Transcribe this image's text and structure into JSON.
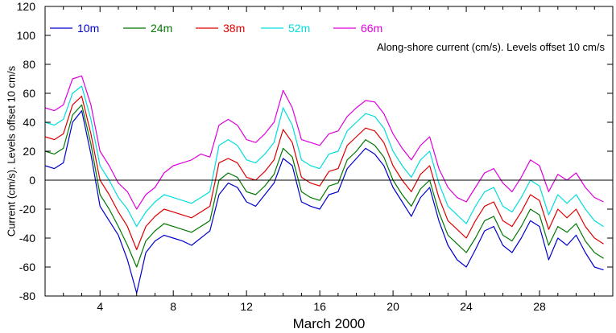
{
  "chart_data": {
    "type": "line",
    "title": "",
    "annotation": "Along-shore current (cm/s). Levels offset 10 cm/s",
    "xlabel": "March 2000",
    "ylabel": "Current (cm/s). Levels offset 10 cm/s",
    "xlim": [
      1,
      32
    ],
    "ylim": [
      -80,
      120
    ],
    "xticks": [
      4,
      8,
      12,
      16,
      20,
      24,
      28
    ],
    "yticks": [
      -80,
      -60,
      -40,
      -20,
      0,
      20,
      40,
      60,
      80,
      100,
      120
    ],
    "zero_line": true,
    "grid": false,
    "legend_position": "top-left",
    "x": [
      1.0,
      1.5,
      2.0,
      2.5,
      3.0,
      3.5,
      4.0,
      4.5,
      5.0,
      5.5,
      6.0,
      6.5,
      7.0,
      7.5,
      8.0,
      8.5,
      9.0,
      9.5,
      10.0,
      10.5,
      11.0,
      11.5,
      12.0,
      12.5,
      13.0,
      13.5,
      14.0,
      14.5,
      15.0,
      15.5,
      16.0,
      16.5,
      17.0,
      17.5,
      18.0,
      18.5,
      19.0,
      19.5,
      20.0,
      20.5,
      21.0,
      21.5,
      22.0,
      22.5,
      23.0,
      23.5,
      24.0,
      24.5,
      25.0,
      25.5,
      26.0,
      26.5,
      27.0,
      27.5,
      28.0,
      28.5,
      29.0,
      29.5,
      30.0,
      30.5,
      31.0,
      31.5
    ],
    "series": [
      {
        "name": "10m",
        "color": "#0000cc",
        "values": [
          10,
          8,
          12,
          40,
          48,
          18,
          -18,
          -28,
          -38,
          -55,
          -78,
          -50,
          -42,
          -38,
          -40,
          -42,
          -45,
          -40,
          -35,
          -10,
          -2,
          -5,
          -15,
          -18,
          -10,
          -2,
          15,
          10,
          -15,
          -18,
          -20,
          -10,
          -8,
          8,
          15,
          22,
          18,
          10,
          -5,
          -15,
          -25,
          -12,
          -5,
          -28,
          -45,
          -55,
          -60,
          -48,
          -35,
          -32,
          -45,
          -50,
          -40,
          -28,
          -32,
          -55,
          -40,
          -45,
          -38,
          -50,
          -60,
          -62
        ]
      },
      {
        "name": "24m",
        "color": "#007700",
        "values": [
          20,
          18,
          22,
          45,
          52,
          25,
          -10,
          -20,
          -32,
          -45,
          -60,
          -42,
          -35,
          -30,
          -32,
          -34,
          -36,
          -32,
          -28,
          0,
          5,
          2,
          -8,
          -10,
          -4,
          4,
          22,
          16,
          -8,
          -12,
          -14,
          -4,
          -2,
          14,
          20,
          28,
          24,
          16,
          0,
          -10,
          -18,
          -6,
          0,
          -22,
          -38,
          -44,
          -50,
          -40,
          -28,
          -25,
          -38,
          -42,
          -32,
          -20,
          -24,
          -45,
          -32,
          -36,
          -30,
          -42,
          -50,
          -54
        ]
      },
      {
        "name": "38m",
        "color": "#dd0000",
        "values": [
          30,
          28,
          32,
          52,
          58,
          32,
          0,
          -10,
          -22,
          -32,
          -48,
          -32,
          -25,
          -20,
          -22,
          -24,
          -26,
          -22,
          -18,
          12,
          15,
          12,
          2,
          0,
          6,
          14,
          35,
          26,
          2,
          -2,
          -4,
          6,
          8,
          24,
          30,
          36,
          34,
          26,
          10,
          0,
          -8,
          4,
          10,
          -12,
          -28,
          -34,
          -40,
          -28,
          -18,
          -15,
          -28,
          -32,
          -22,
          -10,
          -14,
          -34,
          -20,
          -26,
          -20,
          -32,
          -40,
          -44
        ]
      },
      {
        "name": "52m",
        "color": "#00dddd",
        "values": [
          40,
          38,
          42,
          60,
          65,
          42,
          10,
          0,
          -12,
          -20,
          -32,
          -22,
          -15,
          -10,
          -12,
          -14,
          -16,
          -12,
          -8,
          24,
          28,
          24,
          14,
          12,
          18,
          26,
          50,
          38,
          14,
          10,
          8,
          18,
          20,
          34,
          40,
          46,
          44,
          36,
          20,
          10,
          2,
          14,
          20,
          -2,
          -18,
          -24,
          -30,
          -18,
          -8,
          -5,
          -18,
          -22,
          -12,
          0,
          -4,
          -24,
          -10,
          -16,
          -10,
          -20,
          -28,
          -32
        ]
      },
      {
        "name": "66m",
        "color": "#dd00dd",
        "values": [
          50,
          48,
          52,
          70,
          72,
          52,
          20,
          10,
          -2,
          -8,
          -20,
          -10,
          -5,
          5,
          10,
          12,
          14,
          18,
          16,
          38,
          42,
          38,
          28,
          26,
          32,
          40,
          62,
          50,
          28,
          26,
          24,
          32,
          34,
          44,
          50,
          55,
          54,
          46,
          32,
          22,
          14,
          24,
          30,
          8,
          -5,
          -12,
          -15,
          -5,
          5,
          8,
          -2,
          -8,
          2,
          14,
          10,
          -8,
          4,
          0,
          5,
          -5,
          -12,
          -15
        ]
      }
    ]
  }
}
